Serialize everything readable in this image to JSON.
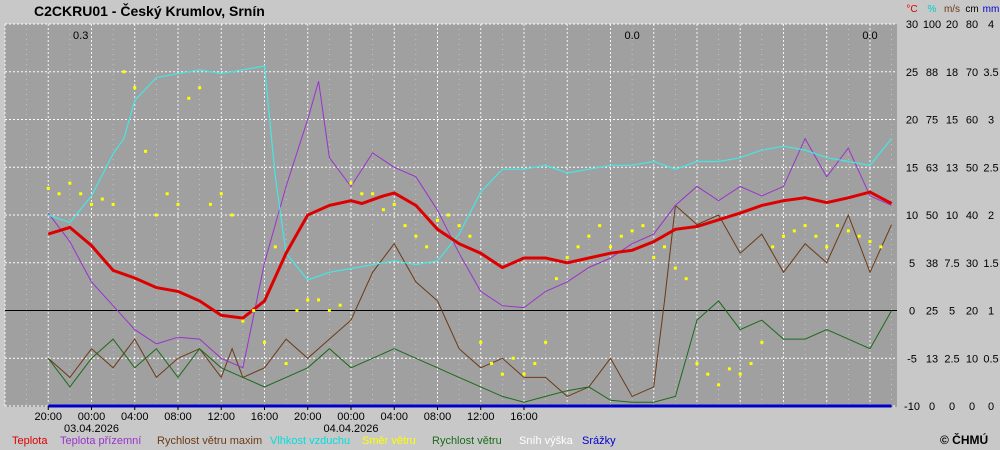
{
  "title": "C2CKRU01 - Český Krumlov, Srnín",
  "copyright": "© ČHMÚ",
  "colors": {
    "background": "#c8c8c8",
    "plot_bg": "#a0a0a0",
    "grid": "#ffffff",
    "teplota": "#dd0000",
    "teplota_prizemni": "#9933cc",
    "rychlost_vetru_maxim": "#6b3a16",
    "vlhkost": "#44e6e6",
    "smer_vetru": "#ffff00",
    "rychlost_vetru": "#1a6b1a",
    "snih": "#ffffff",
    "srazky": "#0000cc",
    "zero_line": "#000000"
  },
  "chart_data": {
    "type": "line",
    "title": "C2CKRU01 - Český Krumlov, Srnín",
    "x_ticks": [
      "20:00",
      "00:00",
      "04:00",
      "08:00",
      "12:00",
      "16:00",
      "20:00",
      "00:00",
      "04:00",
      "08:00",
      "12:00",
      "16:00"
    ],
    "date_labels": [
      {
        "label": "03.04.2026",
        "at": "00:00"
      },
      {
        "label": "04.04.2026",
        "at": "00:00"
      }
    ],
    "axes": [
      {
        "unit": "°C",
        "ticks": [
          "30",
          "25",
          "20",
          "15",
          "10",
          "5",
          "0",
          "-5",
          "-10"
        ],
        "range": [
          -10,
          30
        ],
        "color": "#dd0000"
      },
      {
        "unit": "%",
        "ticks": [
          "100",
          "88",
          "75",
          "63",
          "50",
          "38",
          "25",
          "13",
          "0"
        ],
        "range": [
          0,
          100
        ],
        "color": "#00cccc"
      },
      {
        "unit": "m/s",
        "ticks": [
          "20",
          "18",
          "15",
          "13",
          "10",
          "7.5",
          "5",
          "2.5",
          "0"
        ],
        "range": [
          0,
          20
        ],
        "color": "#6b3a16"
      },
      {
        "unit": "cm",
        "ticks": [
          "80",
          "70",
          "60",
          "50",
          "40",
          "30",
          "20",
          "10",
          "0"
        ],
        "range": [
          0,
          80
        ],
        "color": "#000000"
      },
      {
        "unit": "mm",
        "ticks": [
          "4",
          "3.5",
          "3",
          "2.5",
          "2",
          "1.5",
          "1",
          "0.5",
          "0"
        ],
        "range": [
          0,
          4
        ],
        "color": "#0000cc"
      }
    ],
    "precip_totals": [
      "0.3",
      "0.0",
      "0.0"
    ],
    "legend": [
      {
        "label": "Teplota",
        "color": "#dd0000"
      },
      {
        "label": "Teplota přízemní",
        "color": "#9933cc"
      },
      {
        "label": "Rychlost větru maxim",
        "color": "#6b3a16"
      },
      {
        "label": "Vlhkost vzduchu",
        "color": "#00dddd"
      },
      {
        "label": "Směr větru",
        "color": "#ffff00"
      },
      {
        "label": "Rychlost větru",
        "color": "#1a6b1a"
      },
      {
        "label": "Sníh výška",
        "color": "#ffffff"
      },
      {
        "label": "Srážky",
        "color": "#0000cc"
      }
    ],
    "grid": true,
    "series": [
      {
        "name": "Teplota",
        "axis": "°C",
        "t": [
          0,
          2,
          4,
          6,
          8,
          10,
          12,
          14,
          16,
          18,
          20,
          22,
          24,
          26,
          28,
          29,
          30,
          31,
          32,
          34,
          36,
          38,
          40,
          42,
          44,
          46,
          48,
          50,
          52,
          54,
          56,
          58,
          60,
          62,
          64,
          66,
          68,
          70,
          72,
          74,
          76,
          78
        ],
        "values": [
          8.0,
          8.7,
          6.8,
          4.2,
          3.4,
          2.4,
          2.0,
          1.0,
          -0.5,
          -0.8,
          1.0,
          6.0,
          10.0,
          11.0,
          11.5,
          11.2,
          11.6,
          12.0,
          12.3,
          11.0,
          8.5,
          7.0,
          6.0,
          4.5,
          5.5,
          5.5,
          5.0,
          5.5,
          6.0,
          6.3,
          7.2,
          8.5,
          8.8,
          9.5,
          10.2,
          11.0,
          11.5,
          11.8,
          11.3,
          11.8,
          12.4,
          11.2
        ]
      },
      {
        "name": "Teplota přízemní",
        "axis": "°C",
        "t": [
          0,
          2,
          4,
          6,
          8,
          10,
          12,
          14,
          16,
          18,
          20,
          22,
          24,
          25,
          26,
          28,
          30,
          32,
          34,
          36,
          38,
          40,
          42,
          44,
          46,
          48,
          50,
          52,
          54,
          56,
          58,
          60,
          62,
          64,
          66,
          68,
          70,
          72,
          74,
          76,
          78
        ],
        "values": [
          10.2,
          7.2,
          3.0,
          0.5,
          -2.0,
          -3.5,
          -2.8,
          -3.0,
          -5.0,
          -6.0,
          5.0,
          13.0,
          20.0,
          24.0,
          16.0,
          13.0,
          16.5,
          15.0,
          14.0,
          10.5,
          6.0,
          2.0,
          0.5,
          0.3,
          2.0,
          3.0,
          4.5,
          5.5,
          7.0,
          8.0,
          11.0,
          13.0,
          11.5,
          13.0,
          12.0,
          13.0,
          18.0,
          14.0,
          17.0,
          12.0,
          11.0
        ]
      },
      {
        "name": "Vlhkost vzduchu",
        "axis": "%",
        "t": [
          0,
          2,
          4,
          6,
          7,
          8,
          10,
          12,
          14,
          16,
          18,
          20,
          21,
          22,
          24,
          26,
          28,
          30,
          32,
          34,
          36,
          38,
          40,
          42,
          44,
          46,
          48,
          50,
          52,
          54,
          56,
          58,
          60,
          62,
          64,
          66,
          68,
          70,
          72,
          74,
          76,
          78
        ],
        "values": [
          50,
          48,
          55,
          66,
          70,
          80,
          86,
          87,
          88,
          87,
          88,
          89,
          60,
          40,
          33,
          35,
          36,
          37,
          38,
          37,
          38,
          45,
          56,
          62,
          62,
          63,
          61,
          62,
          63,
          63,
          64,
          62,
          64,
          64,
          65,
          67,
          68,
          67,
          65,
          64,
          63,
          70
        ]
      },
      {
        "name": "Rychlost větru maxim",
        "axis": "m/s",
        "t": [
          0,
          2,
          4,
          6,
          8,
          10,
          12,
          14,
          16,
          17,
          18,
          20,
          22,
          24,
          26,
          28,
          30,
          32,
          34,
          36,
          38,
          40,
          42,
          44,
          46,
          48,
          50,
          52,
          54,
          56,
          57,
          58,
          60,
          62,
          64,
          66,
          68,
          70,
          72,
          74,
          76,
          78
        ],
        "values": [
          2.5,
          1.5,
          3.0,
          2.0,
          3.5,
          1.5,
          2.5,
          3.0,
          1.5,
          3.0,
          1.5,
          2.0,
          3.5,
          2.5,
          3.5,
          4.5,
          7.0,
          8.5,
          6.5,
          5.5,
          3.0,
          2.0,
          2.5,
          1.5,
          1.5,
          0.5,
          1.0,
          2.5,
          0.5,
          1.0,
          5.5,
          10.5,
          9.5,
          10.0,
          8.0,
          9.0,
          7.0,
          8.5,
          7.5,
          10.0,
          7.0,
          9.5
        ]
      },
      {
        "name": "Rychlost větru",
        "axis": "m/s",
        "t": [
          0,
          2,
          4,
          6,
          8,
          10,
          12,
          14,
          16,
          18,
          20,
          22,
          24,
          26,
          28,
          30,
          32,
          34,
          36,
          38,
          40,
          42,
          44,
          46,
          48,
          50,
          52,
          54,
          56,
          58,
          60,
          62,
          64,
          66,
          68,
          70,
          72,
          74,
          76,
          78
        ],
        "values": [
          2.5,
          1.0,
          2.5,
          3.5,
          2.0,
          3.0,
          1.5,
          3.0,
          2.0,
          1.5,
          1.0,
          1.5,
          2.0,
          3.0,
          2.0,
          2.5,
          3.0,
          2.5,
          2.0,
          1.5,
          1.0,
          0.5,
          0.2,
          0.5,
          0.8,
          1.0,
          0.3,
          0.2,
          0.2,
          0.5,
          4.5,
          5.5,
          4.0,
          4.5,
          3.5,
          3.5,
          4.0,
          3.5,
          3.0,
          5.0
        ]
      },
      {
        "name": "Srážky",
        "axis": "mm",
        "t": [
          0,
          78
        ],
        "values": [
          0,
          0
        ]
      }
    ],
    "wind_direction_deg": {
      "t": [
        0,
        1,
        2,
        3,
        4,
        5,
        6,
        7,
        8,
        9,
        10,
        11,
        12,
        13,
        14,
        15,
        16,
        17,
        18,
        19,
        20,
        21,
        22,
        23,
        24,
        25,
        26,
        27,
        28,
        29,
        30,
        31,
        32,
        33,
        34,
        35,
        36,
        37,
        38,
        39,
        40,
        41,
        42,
        43,
        44,
        45,
        46,
        47,
        48,
        49,
        50,
        51,
        52,
        53,
        54,
        55,
        56,
        57,
        58,
        59,
        60,
        61,
        62,
        63,
        64,
        65,
        66,
        67,
        68,
        69,
        70,
        71,
        72,
        73,
        74,
        75,
        76,
        77
      ],
      "values": [
        205,
        200,
        210,
        200,
        190,
        195,
        190,
        315,
        300,
        240,
        180,
        200,
        190,
        290,
        300,
        190,
        200,
        180,
        80,
        90,
        60,
        150,
        40,
        90,
        100,
        100,
        90,
        95,
        210,
        200,
        200,
        185,
        190,
        170,
        160,
        150,
        175,
        180,
        170,
        160,
        60,
        40,
        30,
        45,
        30,
        40,
        60,
        120,
        140,
        150,
        160,
        170,
        150,
        160,
        165,
        170,
        140,
        150,
        130,
        120,
        40,
        30,
        20,
        35,
        30,
        40,
        60,
        150,
        160,
        165,
        170,
        160,
        150,
        170,
        165,
        160,
        155,
        150
      ]
    }
  }
}
